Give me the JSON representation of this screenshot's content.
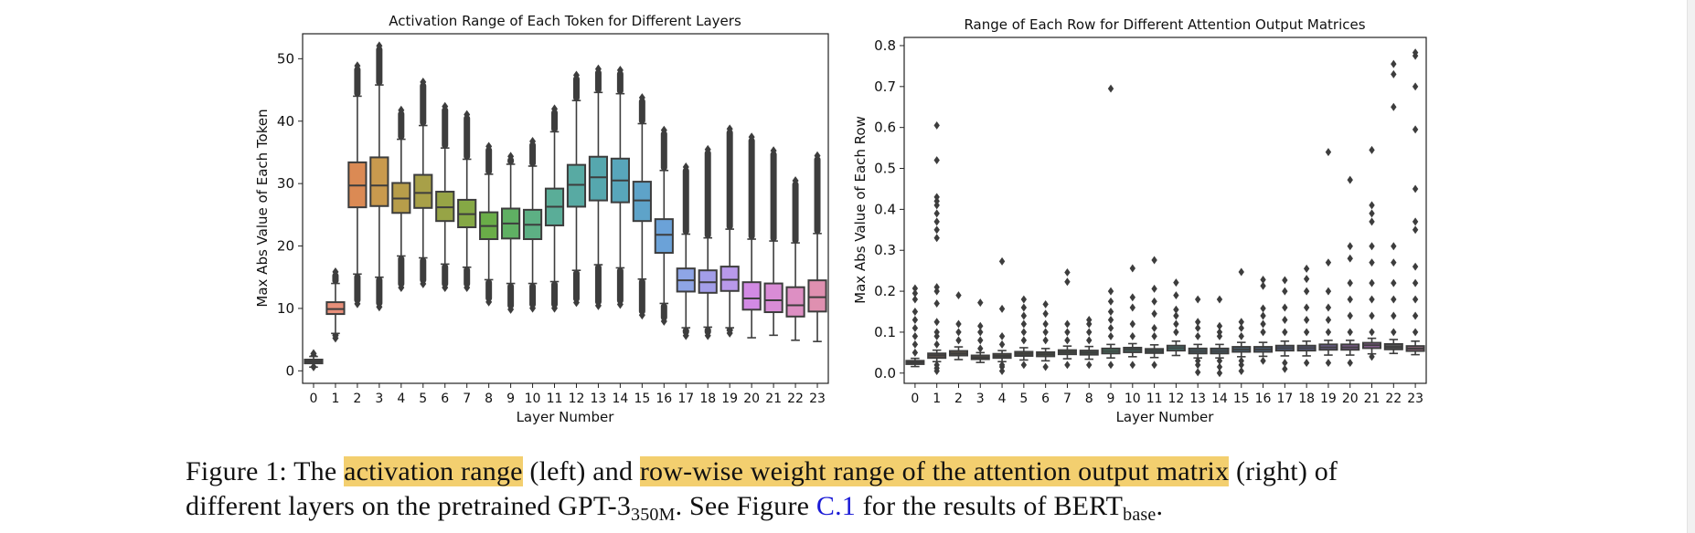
{
  "chart_data": [
    {
      "type": "box",
      "title": "Activation Range of Each Token for Different Layers",
      "xlabel": "Layer Number",
      "ylabel": "Max Abs Value of Each Token",
      "ylim": [
        -2,
        54
      ],
      "yticks": [
        0,
        10,
        20,
        30,
        40,
        50
      ],
      "categories": [
        "0",
        "1",
        "2",
        "3",
        "4",
        "5",
        "6",
        "7",
        "8",
        "9",
        "10",
        "11",
        "12",
        "13",
        "14",
        "15",
        "16",
        "17",
        "18",
        "19",
        "20",
        "21",
        "22",
        "23"
      ],
      "colors": [
        "#5c5c5c",
        "#e88f7a",
        "#db8a54",
        "#c99a4e",
        "#b79d4a",
        "#a8a048",
        "#97a446",
        "#85a845",
        "#6aad48",
        "#5fb063",
        "#5db084",
        "#5aad98",
        "#58aaa3",
        "#56a7ae",
        "#58a6bb",
        "#5ea3c9",
        "#6ba2d8",
        "#8ea5e6",
        "#a39ee9",
        "#b899ea",
        "#d28ae4",
        "#d98cd6",
        "#dd8fc3",
        "#df90b0"
      ],
      "boxes": [
        {
          "q1": 1.2,
          "median": 1.5,
          "q3": 1.8,
          "whislo": 0.6,
          "whishi": 2.3,
          "outlo": 0.2,
          "outhi": 3.2
        },
        {
          "q1": 9.1,
          "median": 9.9,
          "q3": 11.0,
          "whislo": 6.0,
          "whishi": 14.0,
          "outlo": 4.8,
          "outhi": 16.3
        },
        {
          "q1": 26.2,
          "median": 29.7,
          "q3": 33.4,
          "whislo": 15.5,
          "whishi": 44.0,
          "outlo": 10.3,
          "outhi": 49.3
        },
        {
          "q1": 26.4,
          "median": 29.7,
          "q3": 34.2,
          "whislo": 15.0,
          "whishi": 45.8,
          "outlo": 9.8,
          "outhi": 52.5
        },
        {
          "q1": 25.3,
          "median": 27.6,
          "q3": 30.1,
          "whislo": 18.4,
          "whishi": 37.1,
          "outlo": 12.9,
          "outhi": 42.2
        },
        {
          "q1": 26.1,
          "median": 28.5,
          "q3": 31.4,
          "whislo": 18.1,
          "whishi": 39.3,
          "outlo": 13.5,
          "outhi": 46.7
        },
        {
          "q1": 24.0,
          "median": 26.2,
          "q3": 28.7,
          "whislo": 17.1,
          "whishi": 35.7,
          "outlo": 12.9,
          "outhi": 42.8
        },
        {
          "q1": 23.0,
          "median": 25.1,
          "q3": 27.4,
          "whislo": 16.6,
          "whishi": 33.9,
          "outlo": 12.9,
          "outhi": 41.5
        },
        {
          "q1": 21.1,
          "median": 23.2,
          "q3": 25.4,
          "whislo": 14.6,
          "whishi": 31.5,
          "outlo": 10.6,
          "outhi": 36.4
        },
        {
          "q1": 21.2,
          "median": 23.6,
          "q3": 26.0,
          "whislo": 14.0,
          "whishi": 33.1,
          "outlo": 9.4,
          "outhi": 34.8
        },
        {
          "q1": 21.1,
          "median": 23.4,
          "q3": 25.8,
          "whislo": 14.0,
          "whishi": 32.8,
          "outlo": 9.6,
          "outhi": 37.2
        },
        {
          "q1": 23.3,
          "median": 26.3,
          "q3": 29.2,
          "whislo": 14.3,
          "whishi": 38.3,
          "outlo": 9.6,
          "outhi": 42.4
        },
        {
          "q1": 26.3,
          "median": 29.8,
          "q3": 33.0,
          "whislo": 16.1,
          "whishi": 43.3,
          "outlo": 10.5,
          "outhi": 47.8
        },
        {
          "q1": 27.3,
          "median": 31.0,
          "q3": 34.3,
          "whislo": 17.0,
          "whishi": 44.6,
          "outlo": 10.0,
          "outhi": 48.8
        },
        {
          "q1": 27.0,
          "median": 30.5,
          "q3": 34.0,
          "whislo": 16.5,
          "whishi": 44.4,
          "outlo": 10.2,
          "outhi": 48.6
        },
        {
          "q1": 24.0,
          "median": 27.3,
          "q3": 30.3,
          "whislo": 14.7,
          "whishi": 39.6,
          "outlo": 8.5,
          "outhi": 44.2
        },
        {
          "q1": 18.9,
          "median": 21.8,
          "q3": 24.3,
          "whislo": 10.8,
          "whishi": 32.1,
          "outlo": 7.5,
          "outhi": 39.0
        },
        {
          "q1": 12.7,
          "median": 14.5,
          "q3": 16.4,
          "whislo": 6.9,
          "whishi": 21.9,
          "outlo": 5.2,
          "outhi": 33.1
        },
        {
          "q1": 12.5,
          "median": 14.2,
          "q3": 16.1,
          "whislo": 7.0,
          "whishi": 21.3,
          "outlo": 5.2,
          "outhi": 35.9
        },
        {
          "q1": 12.8,
          "median": 14.6,
          "q3": 16.7,
          "whislo": 6.9,
          "whishi": 22.7,
          "outlo": 5.6,
          "outhi": 39.2
        },
        {
          "q1": 9.8,
          "median": 11.6,
          "q3": 14.2,
          "whislo": 5.3,
          "whishi": 21.1,
          "outlo": 5.3,
          "outhi": 37.9
        },
        {
          "q1": 9.4,
          "median": 11.3,
          "q3": 14.0,
          "whislo": 5.7,
          "whishi": 20.8,
          "outlo": 5.7,
          "outhi": 35.7
        },
        {
          "q1": 8.7,
          "median": 10.5,
          "q3": 13.4,
          "whislo": 4.9,
          "whishi": 20.5,
          "outlo": 4.9,
          "outhi": 30.9
        },
        {
          "q1": 9.5,
          "median": 11.8,
          "q3": 14.5,
          "whislo": 4.7,
          "whishi": 22.0,
          "outlo": 4.7,
          "outhi": 34.9
        }
      ]
    },
    {
      "type": "box",
      "title": "Range of Each Row for Different Attention Output Matrices",
      "xlabel": "Layer Number",
      "ylabel": "Max Abs Value of Each Row",
      "ylim": [
        -0.025,
        0.82
      ],
      "yticks": [
        0.0,
        0.1,
        0.2,
        0.3,
        0.4,
        0.5,
        0.6,
        0.7,
        0.8
      ],
      "ytick_labels": [
        "0.0",
        "0.1",
        "0.2",
        "0.3",
        "0.4",
        "0.5",
        "0.6",
        "0.7",
        "0.8"
      ],
      "categories": [
        "0",
        "1",
        "2",
        "3",
        "4",
        "5",
        "6",
        "7",
        "8",
        "9",
        "10",
        "11",
        "12",
        "13",
        "14",
        "15",
        "16",
        "17",
        "18",
        "19",
        "20",
        "21",
        "22",
        "23"
      ],
      "colors": [
        "#5a4a47",
        "#6b5a53",
        "#6d5e4f",
        "#6a5d4c",
        "#675f4a",
        "#5e6348",
        "#586547",
        "#546a4c",
        "#4f6c57",
        "#4d8a70",
        "#497a72",
        "#487574",
        "#4a8b84",
        "#4a6b77",
        "#4b697b",
        "#4c6c83",
        "#4f6a8c",
        "#5a6896",
        "#64689b",
        "#76679e",
        "#8a65a0",
        "#9a66a4",
        "#555555",
        "#9b6a85"
      ],
      "boxes": [
        {
          "q1": 0.022,
          "median": 0.026,
          "q3": 0.03,
          "whislo": 0.016,
          "whishi": 0.036,
          "outliers": [
            0.05,
            0.07,
            0.09,
            0.11,
            0.13,
            0.15,
            0.18,
            0.195,
            0.207
          ]
        },
        {
          "q1": 0.037,
          "median": 0.043,
          "q3": 0.048,
          "whislo": 0.028,
          "whishi": 0.056,
          "outliers": [
            0.005,
            0.012,
            0.02,
            0.07,
            0.09,
            0.1,
            0.125,
            0.17,
            0.2,
            0.21,
            0.33,
            0.35,
            0.37,
            0.39,
            0.41,
            0.42,
            0.43,
            0.52,
            0.605
          ]
        },
        {
          "q1": 0.043,
          "median": 0.048,
          "q3": 0.054,
          "whislo": 0.033,
          "whishi": 0.064,
          "outliers": [
            0.08,
            0.1,
            0.12,
            0.19
          ]
        },
        {
          "q1": 0.034,
          "median": 0.038,
          "q3": 0.043,
          "whislo": 0.026,
          "whishi": 0.05,
          "outliers": [
            0.06,
            0.08,
            0.1,
            0.115,
            0.172
          ]
        },
        {
          "q1": 0.037,
          "median": 0.042,
          "q3": 0.047,
          "whislo": 0.028,
          "whishi": 0.055,
          "outliers": [
            0.005,
            0.015,
            0.02,
            0.07,
            0.09,
            0.157,
            0.273
          ]
        },
        {
          "q1": 0.042,
          "median": 0.047,
          "q3": 0.052,
          "whislo": 0.032,
          "whishi": 0.062,
          "outliers": [
            0.02,
            0.08,
            0.1,
            0.12,
            0.14,
            0.16,
            0.18
          ]
        },
        {
          "q1": 0.041,
          "median": 0.046,
          "q3": 0.051,
          "whislo": 0.03,
          "whishi": 0.06,
          "outliers": [
            0.015,
            0.08,
            0.1,
            0.12,
            0.145,
            0.168
          ]
        },
        {
          "q1": 0.046,
          "median": 0.051,
          "q3": 0.056,
          "whislo": 0.035,
          "whishi": 0.066,
          "outliers": [
            0.02,
            0.08,
            0.1,
            0.12,
            0.223,
            0.246
          ]
        },
        {
          "q1": 0.045,
          "median": 0.05,
          "q3": 0.055,
          "whislo": 0.034,
          "whishi": 0.065,
          "outliers": [
            0.02,
            0.08,
            0.1,
            0.12,
            0.13
          ]
        },
        {
          "q1": 0.048,
          "median": 0.054,
          "q3": 0.06,
          "whislo": 0.037,
          "whishi": 0.07,
          "outliers": [
            0.02,
            0.09,
            0.11,
            0.13,
            0.15,
            0.175,
            0.2,
            0.695
          ]
        },
        {
          "q1": 0.051,
          "median": 0.057,
          "q3": 0.062,
          "whislo": 0.04,
          "whishi": 0.072,
          "outliers": [
            0.02,
            0.09,
            0.12,
            0.16,
            0.185,
            0.256
          ]
        },
        {
          "q1": 0.049,
          "median": 0.054,
          "q3": 0.059,
          "whislo": 0.038,
          "whishi": 0.069,
          "outliers": [
            0.02,
            0.09,
            0.11,
            0.145,
            0.175,
            0.206,
            0.276
          ]
        },
        {
          "q1": 0.055,
          "median": 0.061,
          "q3": 0.067,
          "whislo": 0.043,
          "whishi": 0.078,
          "outliers": [
            0.1,
            0.12,
            0.14,
            0.155,
            0.19,
            0.221
          ]
        },
        {
          "q1": 0.048,
          "median": 0.054,
          "q3": 0.06,
          "whislo": 0.037,
          "whishi": 0.07,
          "outliers": [
            0.002,
            0.02,
            0.03,
            0.09,
            0.11,
            0.125,
            0.18
          ]
        },
        {
          "q1": 0.048,
          "median": 0.054,
          "q3": 0.06,
          "whislo": 0.037,
          "whishi": 0.07,
          "outliers": [
            0.0,
            0.015,
            0.03,
            0.09,
            0.1,
            0.115,
            0.18
          ]
        },
        {
          "q1": 0.052,
          "median": 0.058,
          "q3": 0.064,
          "whislo": 0.04,
          "whishi": 0.075,
          "outliers": [
            0.005,
            0.02,
            0.03,
            0.09,
            0.11,
            0.125,
            0.247
          ]
        },
        {
          "q1": 0.052,
          "median": 0.058,
          "q3": 0.064,
          "whislo": 0.041,
          "whishi": 0.075,
          "outliers": [
            0.03,
            0.1,
            0.12,
            0.14,
            0.158,
            0.213,
            0.228
          ]
        },
        {
          "q1": 0.055,
          "median": 0.061,
          "q3": 0.067,
          "whislo": 0.042,
          "whishi": 0.078,
          "outliers": [
            0.01,
            0.025,
            0.1,
            0.13,
            0.16,
            0.2,
            0.227
          ]
        },
        {
          "q1": 0.055,
          "median": 0.061,
          "q3": 0.067,
          "whislo": 0.042,
          "whishi": 0.078,
          "outliers": [
            0.025,
            0.1,
            0.13,
            0.16,
            0.2,
            0.23,
            0.255
          ]
        },
        {
          "q1": 0.057,
          "median": 0.063,
          "q3": 0.07,
          "whislo": 0.044,
          "whishi": 0.08,
          "outliers": [
            0.025,
            0.1,
            0.13,
            0.16,
            0.2,
            0.27,
            0.54
          ]
        },
        {
          "q1": 0.057,
          "median": 0.063,
          "q3": 0.07,
          "whislo": 0.044,
          "whishi": 0.08,
          "outliers": [
            0.025,
            0.1,
            0.14,
            0.18,
            0.22,
            0.28,
            0.31,
            0.472
          ]
        },
        {
          "q1": 0.061,
          "median": 0.068,
          "q3": 0.074,
          "whislo": 0.047,
          "whishi": 0.085,
          "outliers": [
            0.04,
            0.1,
            0.14,
            0.18,
            0.22,
            0.27,
            0.31,
            0.37,
            0.39,
            0.41,
            0.545
          ]
        },
        {
          "q1": 0.058,
          "median": 0.064,
          "q3": 0.071,
          "whislo": 0.048,
          "whishi": 0.082,
          "outliers": [
            0.1,
            0.14,
            0.18,
            0.22,
            0.27,
            0.31,
            0.65,
            0.73,
            0.755
          ]
        },
        {
          "q1": 0.054,
          "median": 0.06,
          "q3": 0.066,
          "whislo": 0.045,
          "whishi": 0.078,
          "outliers": [
            0.1,
            0.14,
            0.18,
            0.22,
            0.26,
            0.35,
            0.37,
            0.45,
            0.595,
            0.7,
            0.775,
            0.783
          ]
        }
      ]
    }
  ],
  "caption": {
    "prefix": "Figure 1: The",
    "highlight1": "activation range",
    "middle": "(left) and",
    "highlight2": "row-wise weight range of the attention output matrix",
    "suffix": "(right) of",
    "line2_a": "different layers on the pretrained GPT-3",
    "line2_sub1": "350M",
    "line2_b": ". See Figure",
    "link": "C.1",
    "line2_c": "for the results of BERT",
    "line2_sub2": "base",
    "line2_d": "."
  }
}
